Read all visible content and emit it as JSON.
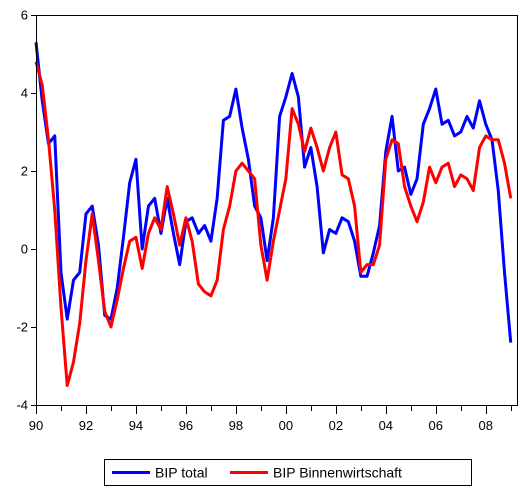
{
  "chart_data": {
    "type": "line",
    "title": "",
    "xlabel": "",
    "ylabel": "",
    "ylim": [
      -4,
      6
    ],
    "yticks": [
      -4,
      -2,
      0,
      2,
      4,
      6
    ],
    "ytick_labels": [
      "-4",
      "-2",
      "0",
      "2",
      "4",
      "6"
    ],
    "xlim": [
      1990,
      2009.25
    ],
    "xticks": [
      1990,
      1992,
      1994,
      1996,
      1998,
      2000,
      2002,
      2004,
      2006,
      2008
    ],
    "xtick_labels": [
      "90",
      "92",
      "94",
      "96",
      "98",
      "00",
      "02",
      "04",
      "06",
      "08"
    ],
    "grid": false,
    "legend_position": "bottom-center",
    "frequency": "quarterly",
    "x_start": "1990Q1",
    "series": [
      {
        "name": "BIP total",
        "color": "#0000ff",
        "values": [
          5.3,
          3.8,
          2.7,
          2.9,
          -0.6,
          -1.8,
          -0.8,
          -0.6,
          0.9,
          1.1,
          0.1,
          -1.7,
          -1.8,
          -1.0,
          0.3,
          1.7,
          2.3,
          0.0,
          1.1,
          1.3,
          0.4,
          1.3,
          0.4,
          -0.4,
          0.7,
          0.8,
          0.4,
          0.6,
          0.2,
          1.3,
          3.3,
          3.4,
          4.1,
          3.1,
          2.3,
          1.1,
          0.8,
          -0.3,
          0.8,
          3.4,
          3.9,
          4.5,
          3.9,
          2.1,
          2.6,
          1.6,
          -0.1,
          0.5,
          0.4,
          0.8,
          0.7,
          0.2,
          -0.7,
          -0.7,
          -0.1,
          0.6,
          2.5,
          3.4,
          2.0,
          2.1,
          1.4,
          1.8,
          3.2,
          3.6,
          4.1,
          3.2,
          3.3,
          2.9,
          3.0,
          3.4,
          3.1,
          3.8,
          3.2,
          2.8,
          1.5,
          -0.6,
          -2.4
        ]
      },
      {
        "name": "BIP Binnenwirtschaft",
        "color": "#ff0000",
        "values": [
          4.8,
          4.2,
          2.8,
          1.0,
          -1.5,
          -3.5,
          -2.9,
          -1.9,
          -0.3,
          0.9,
          -0.3,
          -1.6,
          -2.0,
          -1.3,
          -0.5,
          0.2,
          0.3,
          -0.5,
          0.4,
          0.8,
          0.5,
          1.6,
          0.9,
          0.1,
          0.8,
          0.2,
          -0.9,
          -1.1,
          -1.2,
          -0.8,
          0.5,
          1.1,
          2.0,
          2.2,
          2.0,
          1.8,
          0.1,
          -0.8,
          0.2,
          1.0,
          1.8,
          3.6,
          3.2,
          2.5,
          3.1,
          2.6,
          2.0,
          2.6,
          3.0,
          1.9,
          1.8,
          1.1,
          -0.6,
          -0.4,
          -0.4,
          0.1,
          2.3,
          2.8,
          2.7,
          1.6,
          1.1,
          0.7,
          1.2,
          2.1,
          1.7,
          2.1,
          2.2,
          1.6,
          1.9,
          1.8,
          1.5,
          2.6,
          2.9,
          2.8,
          2.8,
          2.2,
          1.3
        ]
      }
    ]
  }
}
